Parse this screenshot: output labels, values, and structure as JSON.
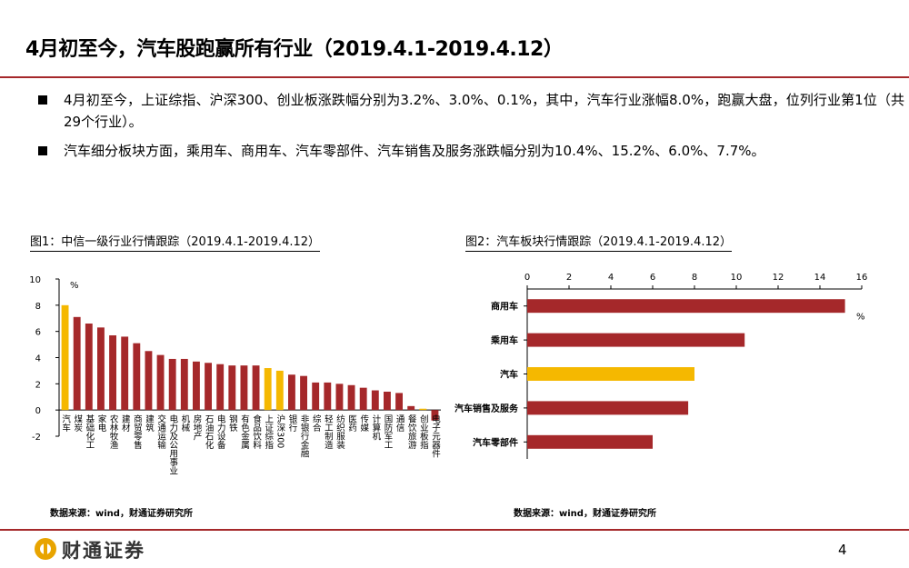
{
  "title": "4月初至今，汽车股跑赢所有行业（2019.4.1-2019.4.12）",
  "bullets": [
    "4月初至今，上证综指、沪深300、创业板涨跌幅分别为3.2%、3.0%、0.1%，其中，汽车行业涨幅8.0%，跑赢大盘，位列行业第1位（共29个行业）。",
    "汽车细分板块方面，乘用车、商用车、汽车零部件、汽车销售及服务涨跌幅分别为10.4%、15.2%、6.0%、7.7%。"
  ],
  "chart_data": [
    {
      "type": "bar",
      "orientation": "vertical",
      "title": "图1：中信一级行业行情跟踪（2019.4.1-2019.4.12）",
      "unit": "%",
      "source": "数据来源：wind，财通证券研究所",
      "categories": [
        "汽车",
        "煤炭",
        "基础化工",
        "家电",
        "农林牧渔",
        "建材",
        "商贸零售",
        "建筑",
        "交通运输",
        "电力及公用事业",
        "机械",
        "房地产",
        "石油石化",
        "电力设备",
        "钢铁",
        "有色金属",
        "食品饮料",
        "上证综指",
        "沪深300",
        "银行",
        "非银行金融",
        "综合",
        "轻工制造",
        "纺织服装",
        "医药",
        "传媒",
        "计算机",
        "国防军工",
        "通信",
        "餐饮旅游",
        "创业板指",
        "电子元器件"
      ],
      "values": [
        8.0,
        7.1,
        6.6,
        6.3,
        5.7,
        5.6,
        5.1,
        4.5,
        4.2,
        3.9,
        3.9,
        3.7,
        3.6,
        3.5,
        3.4,
        3.4,
        3.4,
        3.2,
        3.0,
        2.7,
        2.6,
        2.1,
        2.1,
        2.0,
        1.9,
        1.7,
        1.5,
        1.4,
        1.3,
        0.3,
        0.1,
        -0.8
      ],
      "colors": [
        "#f5b800",
        "#a5282a",
        "#a5282a",
        "#a5282a",
        "#a5282a",
        "#a5282a",
        "#a5282a",
        "#a5282a",
        "#a5282a",
        "#a5282a",
        "#a5282a",
        "#a5282a",
        "#a5282a",
        "#a5282a",
        "#a5282a",
        "#a5282a",
        "#a5282a",
        "#f5b800",
        "#f5b800",
        "#a5282a",
        "#a5282a",
        "#a5282a",
        "#a5282a",
        "#a5282a",
        "#a5282a",
        "#a5282a",
        "#a5282a",
        "#a5282a",
        "#a5282a",
        "#a5282a",
        "#f5b800",
        "#a5282a"
      ],
      "ylim": [
        -2,
        10
      ],
      "yticks": [
        -2,
        0,
        2,
        4,
        6,
        8,
        10
      ]
    },
    {
      "type": "bar",
      "orientation": "horizontal",
      "title": "图2：汽车板块行情跟踪（2019.4.1-2019.4.12）",
      "unit": "%",
      "source": "数据来源：wind，财通证券研究所",
      "categories": [
        "商用车",
        "乘用车",
        "汽车",
        "汽车销售及服务",
        "汽车零部件"
      ],
      "values": [
        15.2,
        10.4,
        8.0,
        7.7,
        6.0
      ],
      "colors": [
        "#a5282a",
        "#a5282a",
        "#f5b800",
        "#a5282a",
        "#a5282a"
      ],
      "xlim": [
        0,
        16
      ],
      "xticks": [
        0,
        2,
        4,
        6,
        8,
        10,
        12,
        14,
        16
      ],
      "x_axis_position": "top"
    }
  ],
  "footer": {
    "logo": "财通证券",
    "page": "4"
  }
}
